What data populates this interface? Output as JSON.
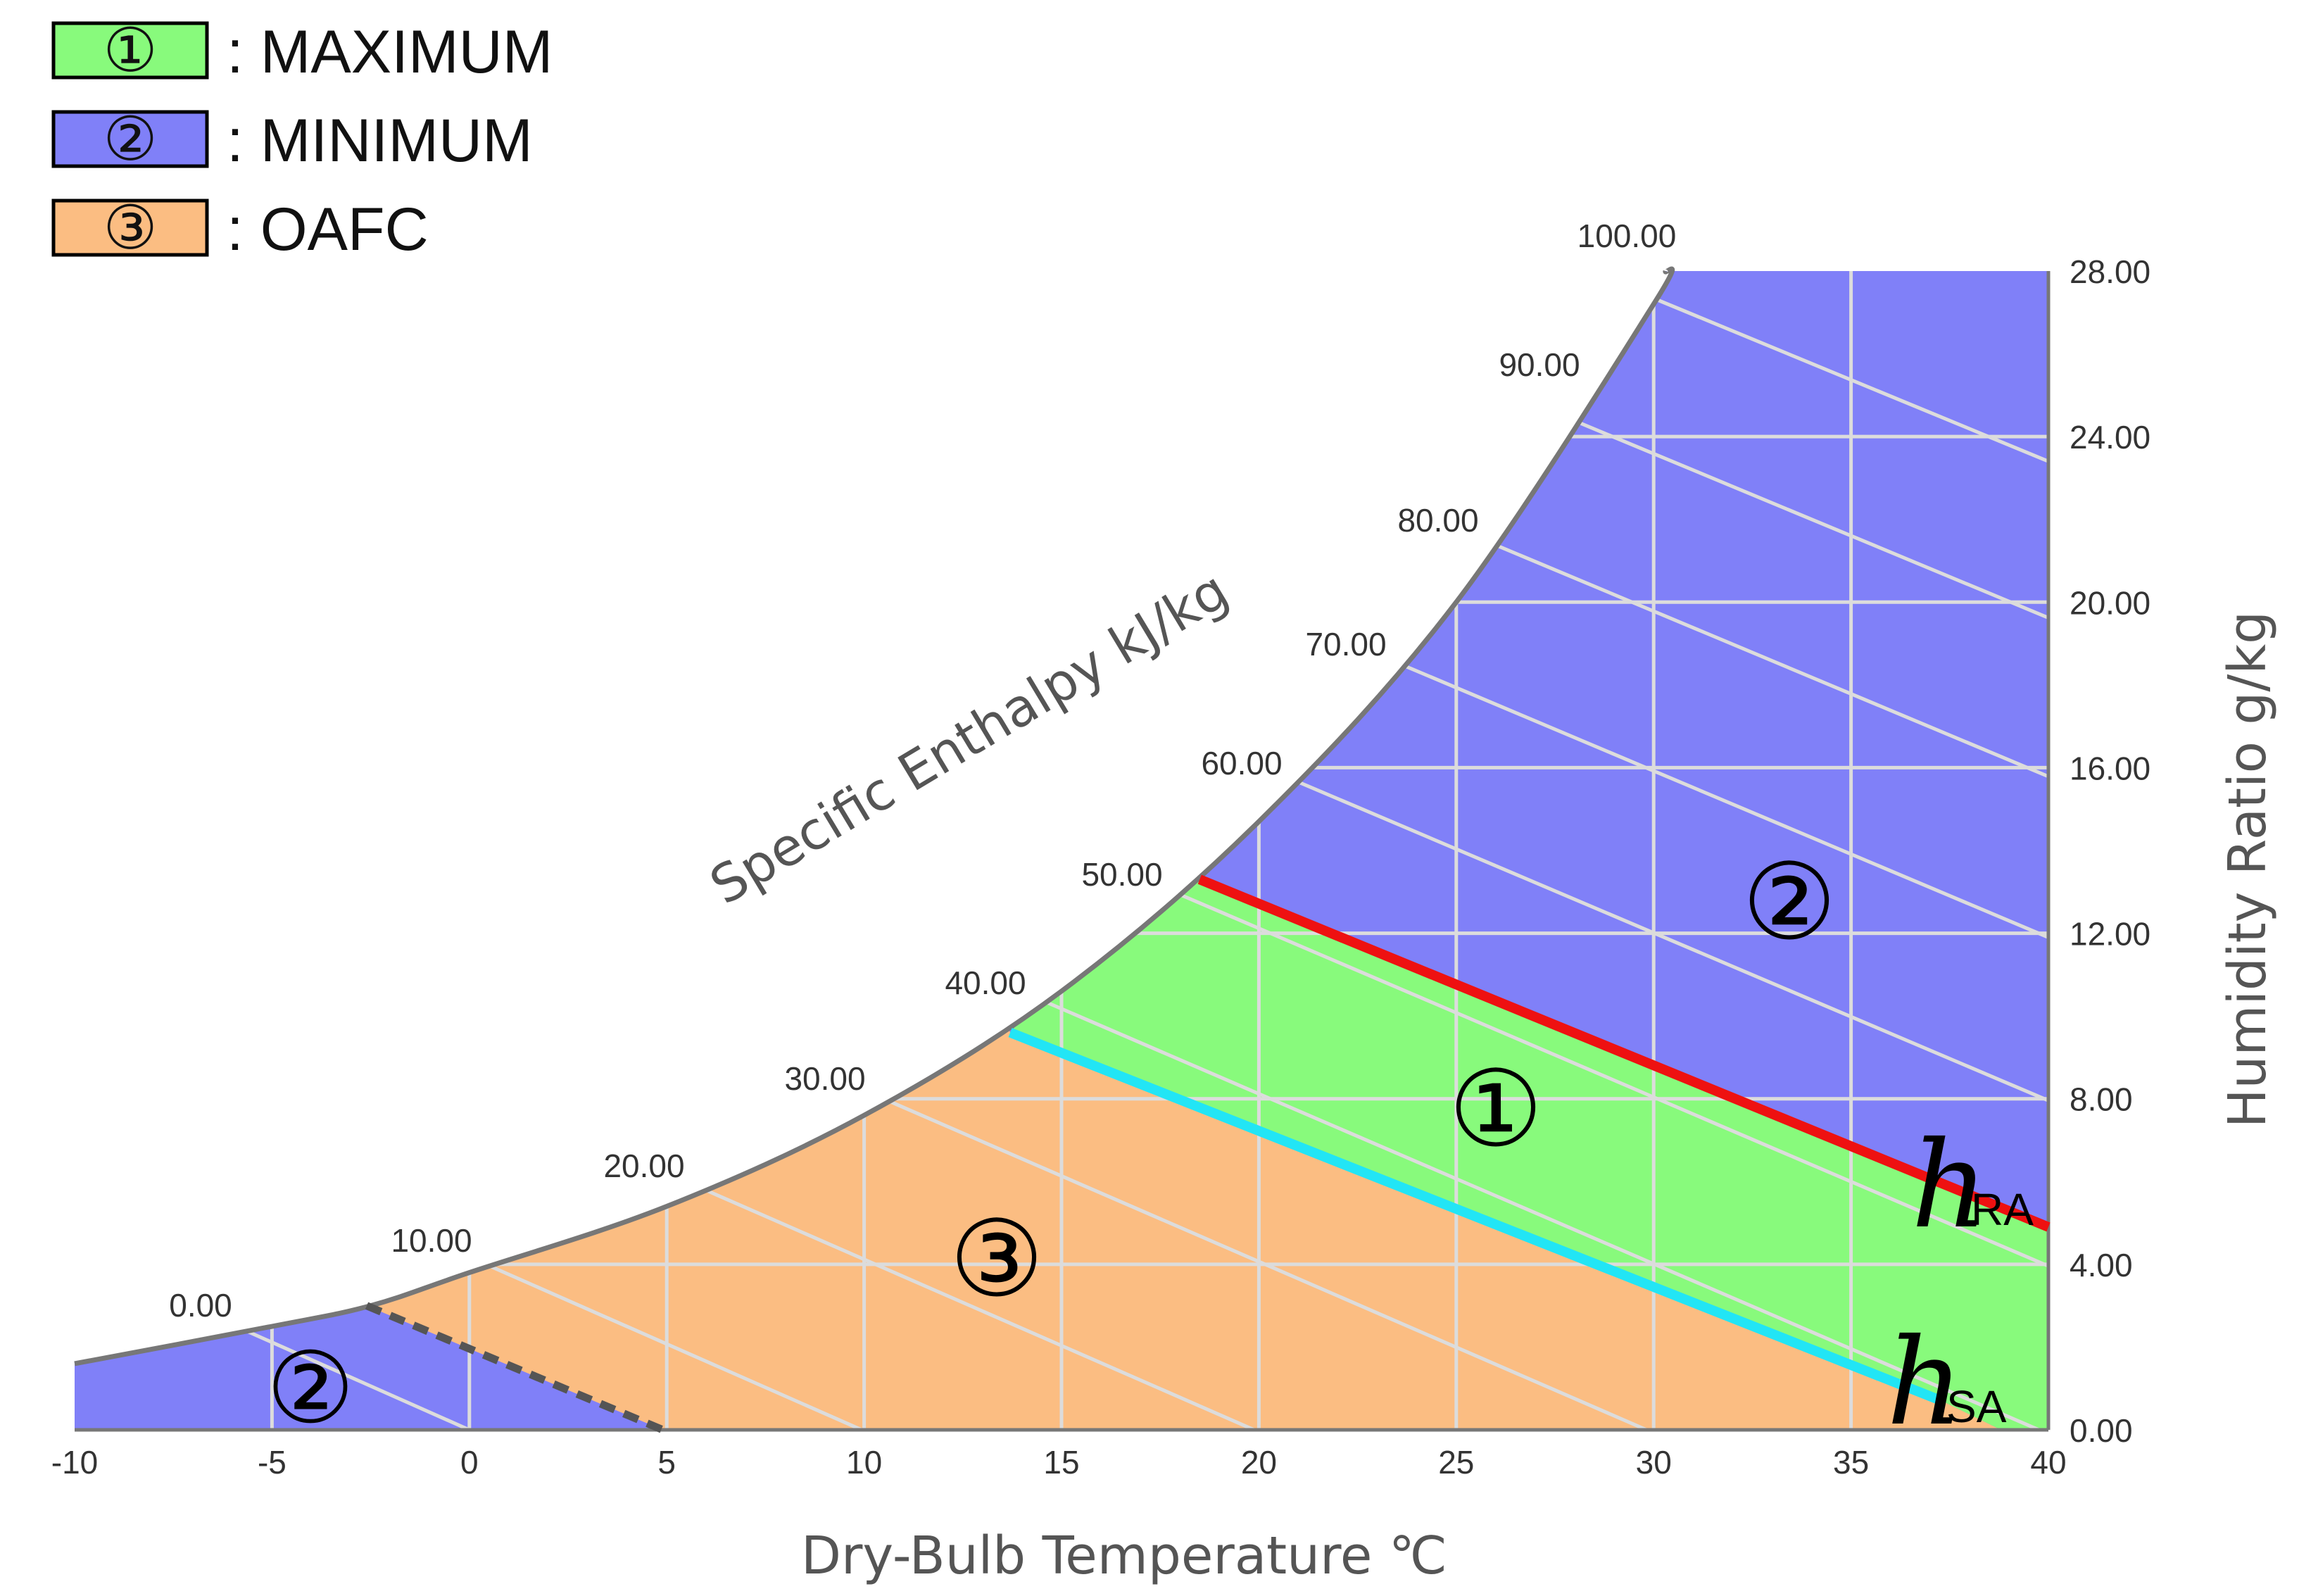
{
  "legend": [
    {
      "symbol": "①",
      "label": ": MAXIMUM",
      "color": "#88fa7c"
    },
    {
      "symbol": "②",
      "label": ": MINIMUM",
      "color": "#8080f8"
    },
    {
      "symbol": "③",
      "label": ": OAFC",
      "color": "#fbbd82"
    }
  ],
  "chart_data": {
    "type": "area",
    "xlabel": "Dry-Bulb Temperature ℃",
    "ylabel": "Humidity Ratio g/kg",
    "enthalpy_label": "Specific Enthalpy kJ/kg",
    "xlim": [
      -10,
      40
    ],
    "ylim": [
      0,
      28
    ],
    "x_ticks": [
      "-10",
      "-5",
      "0",
      "5",
      "10",
      "15",
      "20",
      "25",
      "30",
      "35",
      "40"
    ],
    "y_ticks": [
      "0.00",
      "4.00",
      "8.00",
      "12.00",
      "16.00",
      "20.00",
      "24.00",
      "28.00"
    ],
    "enthalpy_ticks": [
      "0.00",
      "10.00",
      "20.00",
      "30.00",
      "40.00",
      "50.00",
      "60.00",
      "70.00",
      "80.00",
      "90.00",
      "100.00"
    ],
    "grid": true,
    "saturation_curve": {
      "x": [
        -10,
        -5,
        -2.5,
        0,
        5,
        10,
        15,
        20,
        25,
        30,
        30.3
      ],
      "y": [
        1.6,
        2.5,
        3.0,
        3.8,
        5.4,
        7.6,
        10.6,
        14.7,
        20.0,
        27.2,
        28
      ]
    },
    "lines": [
      {
        "name": "h_RA",
        "color": "#ee1111",
        "x": [
          18.5,
          40
        ],
        "y": [
          13.3,
          4.9
        ]
      },
      {
        "name": "h_SA",
        "color": "#22e5f5",
        "x": [
          13.7,
          37.3
        ],
        "y": [
          9.6,
          0.7
        ]
      },
      {
        "name": "boundary",
        "color": "#555555",
        "style": "dashed",
        "x": [
          -2.6,
          4.9
        ],
        "y": [
          3.0,
          0
        ]
      }
    ],
    "regions": [
      {
        "label": "①",
        "name": "MAXIMUM",
        "color": "#88fa7c"
      },
      {
        "label": "②",
        "name": "MINIMUM",
        "color": "#8080f8"
      },
      {
        "label": "③",
        "name": "OAFC",
        "color": "#fbbd82"
      },
      {
        "label": "②",
        "name": "MINIMUM",
        "color": "#8080f8"
      }
    ],
    "annotations": [
      {
        "text": "h",
        "sub": "RA"
      },
      {
        "text": "h",
        "sub": "SA"
      }
    ]
  }
}
